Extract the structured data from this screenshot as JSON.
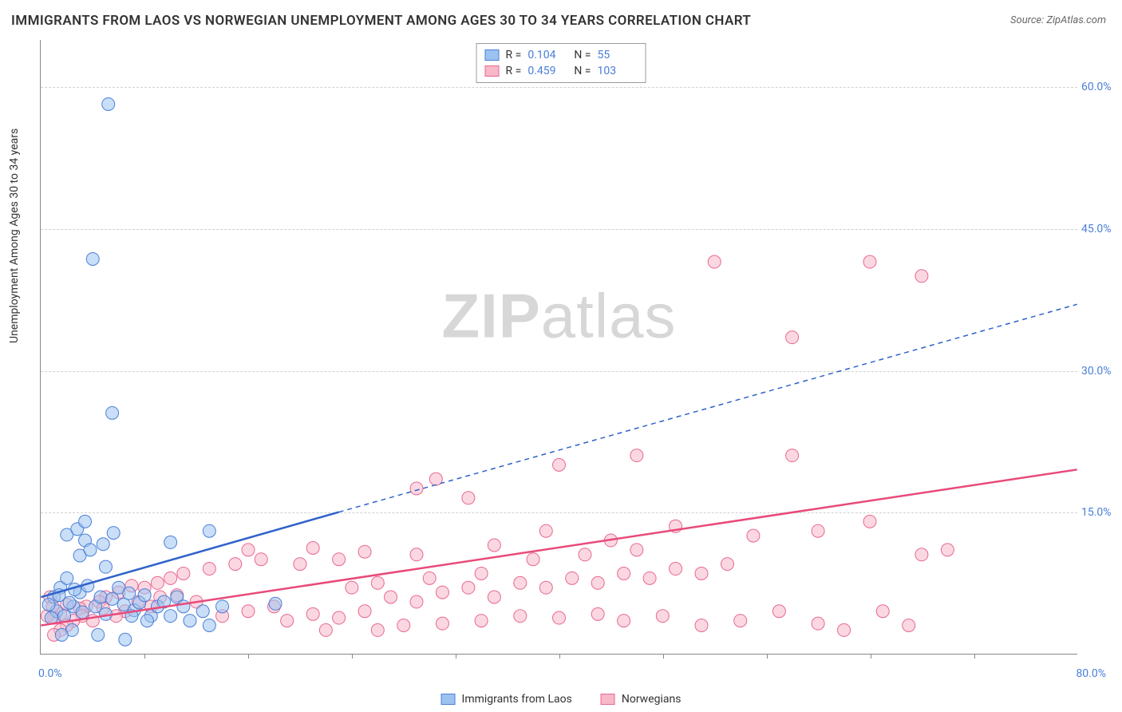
{
  "title": "IMMIGRANTS FROM LAOS VS NORWEGIAN UNEMPLOYMENT AMONG AGES 30 TO 34 YEARS CORRELATION CHART",
  "source_label": "Source:",
  "source_name": "ZipAtlas.com",
  "y_axis_label": "Unemployment Among Ages 30 to 34 years",
  "watermark_a": "ZIP",
  "watermark_b": "atlas",
  "chart": {
    "type": "scatter",
    "xlim": [
      0,
      80
    ],
    "ylim": [
      0,
      65
    ],
    "x_tick_step": 8,
    "y_ticks": [
      15,
      30,
      45,
      60
    ],
    "y_tick_labels": [
      "15.0%",
      "30.0%",
      "45.0%",
      "60.0%"
    ],
    "x_label_min": "0.0%",
    "x_label_max": "80.0%",
    "background_color": "#ffffff",
    "grid_color": "#d0d0d0",
    "axis_color": "#888888",
    "marker_radius": 8,
    "marker_opacity": 0.55,
    "colors": {
      "series_a_fill": "#9cc3f0",
      "series_a_stroke": "#4a7fd8",
      "series_b_fill": "#f8b8c8",
      "series_b_stroke": "#e86890",
      "trend_a": "#2f62c9",
      "trend_b": "#e84a7a",
      "tick_label": "#4a7fd8"
    },
    "series_a": {
      "name": "Immigrants from Laos",
      "R": "0.104",
      "N": "55",
      "points": [
        [
          5.2,
          58.2
        ],
        [
          4.0,
          41.8
        ],
        [
          5.5,
          25.5
        ],
        [
          1.0,
          6.0
        ],
        [
          1.5,
          7.0
        ],
        [
          2.0,
          8.0
        ],
        [
          2.5,
          5.0
        ],
        [
          3.0,
          6.5
        ],
        [
          1.2,
          4.5
        ],
        [
          0.6,
          5.2
        ],
        [
          0.8,
          3.8
        ],
        [
          1.4,
          6.2
        ],
        [
          1.8,
          4.0
        ],
        [
          2.2,
          5.4
        ],
        [
          2.6,
          6.8
        ],
        [
          3.2,
          4.4
        ],
        [
          3.6,
          7.2
        ],
        [
          4.2,
          5.0
        ],
        [
          4.6,
          6.0
        ],
        [
          5.0,
          4.2
        ],
        [
          5.5,
          5.8
        ],
        [
          6.0,
          7.0
        ],
        [
          6.4,
          5.2
        ],
        [
          6.8,
          6.4
        ],
        [
          7.2,
          4.6
        ],
        [
          7.6,
          5.4
        ],
        [
          8.0,
          6.2
        ],
        [
          8.5,
          4.0
        ],
        [
          9.0,
          5.0
        ],
        [
          2.0,
          12.6
        ],
        [
          2.8,
          13.2
        ],
        [
          3.4,
          12.0
        ],
        [
          3.0,
          10.4
        ],
        [
          4.8,
          11.6
        ],
        [
          5.0,
          9.2
        ],
        [
          5.6,
          12.8
        ],
        [
          3.8,
          11.0
        ],
        [
          6.5,
          1.5
        ],
        [
          4.4,
          2.0
        ],
        [
          2.4,
          2.5
        ],
        [
          1.6,
          2.0
        ],
        [
          13.0,
          3.0
        ],
        [
          7.0,
          4.0
        ],
        [
          8.2,
          3.5
        ],
        [
          9.5,
          5.5
        ],
        [
          10.0,
          4.0
        ],
        [
          10.5,
          6.0
        ],
        [
          11.0,
          5.0
        ],
        [
          11.5,
          3.5
        ],
        [
          12.5,
          4.5
        ],
        [
          14.0,
          5.0
        ],
        [
          13.0,
          13.0
        ],
        [
          18.1,
          5.3
        ],
        [
          10.0,
          11.8
        ],
        [
          3.4,
          14.0
        ]
      ],
      "trend": {
        "x1": 0,
        "y1": 6.0,
        "x2": 23,
        "y2": 15.0,
        "dash_x2": 80,
        "dash_y2": 37.0,
        "width": 2.5
      }
    },
    "series_b": {
      "name": "Norwegians",
      "R": "0.459",
      "N": "103",
      "points": [
        [
          52.0,
          41.5
        ],
        [
          64.0,
          41.5
        ],
        [
          68.0,
          40.0
        ],
        [
          58.0,
          33.5
        ],
        [
          46.0,
          21.0
        ],
        [
          58.0,
          21.0
        ],
        [
          40.0,
          20.0
        ],
        [
          30.5,
          18.5
        ],
        [
          29.0,
          17.5
        ],
        [
          33.0,
          16.5
        ],
        [
          60.0,
          13.0
        ],
        [
          64.0,
          14.0
        ],
        [
          49.0,
          13.5
        ],
        [
          55.0,
          12.5
        ],
        [
          44.0,
          12.0
        ],
        [
          39.0,
          13.0
        ],
        [
          35.0,
          11.5
        ],
        [
          29.0,
          10.5
        ],
        [
          25.0,
          10.8
        ],
        [
          23.0,
          10.0
        ],
        [
          21.0,
          11.2
        ],
        [
          20.0,
          9.5
        ],
        [
          17.0,
          10.0
        ],
        [
          15.0,
          9.5
        ],
        [
          16.0,
          11.0
        ],
        [
          13.0,
          9.0
        ],
        [
          11.0,
          8.5
        ],
        [
          10.0,
          8.0
        ],
        [
          9.0,
          7.5
        ],
        [
          8.0,
          7.0
        ],
        [
          7.0,
          7.2
        ],
        [
          6.0,
          6.5
        ],
        [
          5.0,
          6.0
        ],
        [
          4.5,
          5.5
        ],
        [
          3.5,
          5.0
        ],
        [
          3.0,
          4.8
        ],
        [
          2.0,
          5.2
        ],
        [
          1.5,
          4.2
        ],
        [
          1.0,
          3.8
        ],
        [
          0.7,
          6.0
        ],
        [
          0.5,
          4.0
        ],
        [
          0.9,
          5.0
        ],
        [
          26.0,
          2.5
        ],
        [
          28.0,
          3.0
        ],
        [
          31.0,
          3.2
        ],
        [
          34.0,
          3.5
        ],
        [
          37.0,
          4.0
        ],
        [
          40.0,
          3.8
        ],
        [
          43.0,
          4.2
        ],
        [
          45.0,
          3.5
        ],
        [
          48.0,
          4.0
        ],
        [
          51.0,
          3.0
        ],
        [
          54.0,
          3.5
        ],
        [
          57.0,
          4.5
        ],
        [
          60.0,
          3.2
        ],
        [
          62.0,
          2.5
        ],
        [
          65.0,
          4.5
        ],
        [
          67.0,
          3.0
        ],
        [
          70.0,
          11.0
        ],
        [
          68.0,
          10.5
        ],
        [
          14.0,
          4.0
        ],
        [
          16.0,
          4.5
        ],
        [
          18.0,
          5.0
        ],
        [
          19.0,
          3.5
        ],
        [
          21.0,
          4.2
        ],
        [
          23.0,
          3.8
        ],
        [
          25.0,
          4.5
        ],
        [
          27.0,
          6.0
        ],
        [
          29.0,
          5.5
        ],
        [
          31.0,
          6.5
        ],
        [
          33.0,
          7.0
        ],
        [
          35.0,
          6.0
        ],
        [
          37.0,
          7.5
        ],
        [
          39.0,
          7.0
        ],
        [
          41.0,
          8.0
        ],
        [
          43.0,
          7.5
        ],
        [
          45.0,
          8.5
        ],
        [
          47.0,
          8.0
        ],
        [
          49.0,
          9.0
        ],
        [
          51.0,
          8.5
        ],
        [
          53.0,
          9.5
        ],
        [
          46.0,
          11.0
        ],
        [
          42.0,
          10.5
        ],
        [
          38.0,
          10.0
        ],
        [
          12.0,
          5.5
        ],
        [
          10.5,
          6.2
        ],
        [
          9.2,
          6.0
        ],
        [
          8.5,
          5.0
        ],
        [
          7.5,
          5.5
        ],
        [
          6.5,
          4.5
        ],
        [
          5.8,
          4.0
        ],
        [
          4.8,
          4.8
        ],
        [
          4.0,
          3.5
        ],
        [
          3.2,
          4.0
        ],
        [
          2.5,
          3.5
        ],
        [
          2.0,
          3.0
        ],
        [
          1.5,
          2.5
        ],
        [
          1.0,
          2.0
        ],
        [
          22.0,
          2.5
        ],
        [
          24.0,
          7.0
        ],
        [
          26.0,
          7.5
        ],
        [
          30.0,
          8.0
        ],
        [
          34.0,
          8.5
        ]
      ],
      "trend": {
        "x1": 0,
        "y1": 3.0,
        "x2": 80,
        "y2": 19.5,
        "width": 2.5
      }
    }
  },
  "legend_bottom": {
    "a": "Immigrants from Laos",
    "b": "Norwegians"
  }
}
